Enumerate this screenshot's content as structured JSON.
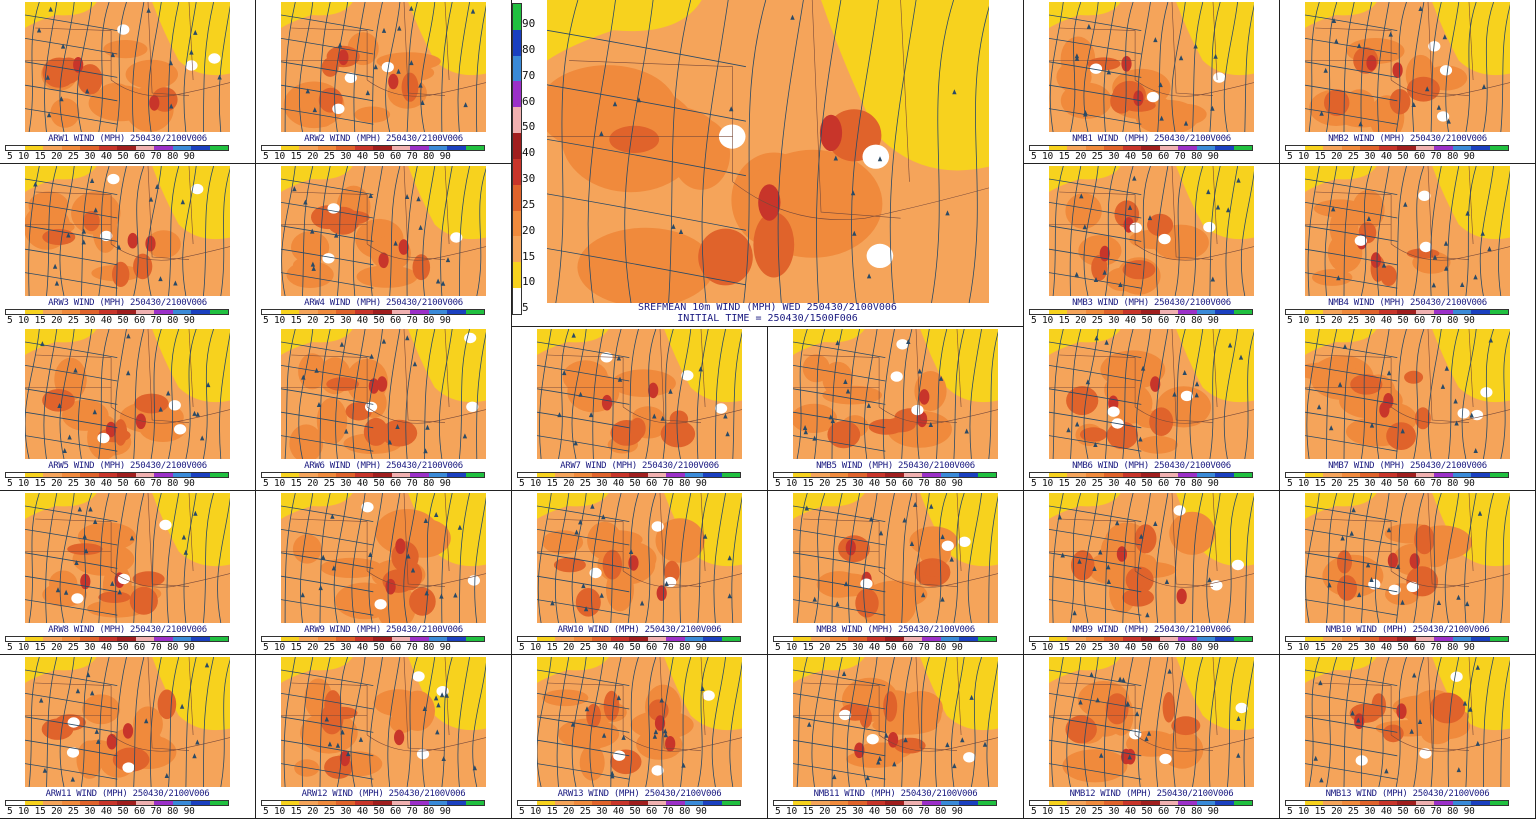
{
  "big": {
    "title": "SREFMEAN 10m WIND (MPH) WED 250430/2100V006",
    "subtitle": "INITIAL TIME = 250430/1500F006",
    "scale": [
      "90",
      "80",
      "70",
      "60",
      "50",
      "40",
      "30",
      "25",
      "20",
      "15",
      "10",
      "5"
    ]
  },
  "scale_ticks": "5 10 15 20 25 30 40 50 60 70 80 90",
  "colors": {
    "light_orange": "#f5a45a",
    "orange": "#f08a3c",
    "dark_orange": "#e0632b",
    "red": "#c8352a",
    "yellow": "#f7d21e",
    "streamline": "#2a4a66",
    "state_line": "#7a4a3a"
  },
  "colorbar": [
    "#ffffff",
    "#f7d21e",
    "#f5a45a",
    "#f08a3c",
    "#e0632b",
    "#c8352a",
    "#a01e1e",
    "#f0b0b0",
    "#9b30c8",
    "#3a8ad8",
    "#1a40c0",
    "#20c040"
  ],
  "panels": [
    {
      "label": "ARW1 WIND (MPH) 250430/2100V006"
    },
    {
      "label": "ARW2 WIND (MPH) 250430/2100V006"
    },
    {
      "label": "NMB1 WIND (MPH) 250430/2100V006"
    },
    {
      "label": "NMB2 WIND (MPH) 250430/2100V006"
    },
    {
      "label": "ARW3 WIND (MPH) 250430/2100V006"
    },
    {
      "label": "ARW4 WIND (MPH) 250430/2100V006"
    },
    {
      "label": "NMB3 WIND (MPH) 250430/2100V006"
    },
    {
      "label": "NMB4 WIND (MPH) 250430/2100V006"
    },
    {
      "label": "ARW5 WIND (MPH) 250430/2100V006"
    },
    {
      "label": "ARW6 WIND (MPH) 250430/2100V006"
    },
    {
      "label": "ARW7 WIND (MPH) 250430/2100V006"
    },
    {
      "label": "NMB5 WIND (MPH) 250430/2100V006"
    },
    {
      "label": "NMB6 WIND (MPH) 250430/2100V006"
    },
    {
      "label": "NMB7 WIND (MPH) 250430/2100V006"
    },
    {
      "label": "ARW8 WIND (MPH) 250430/2100V006"
    },
    {
      "label": "ARW9 WIND (MPH) 250430/2100V006"
    },
    {
      "label": "ARW10 WIND (MPH) 250430/2100V006"
    },
    {
      "label": "NMB8 WIND (MPH) 250430/2100V006"
    },
    {
      "label": "NMB9 WIND (MPH) 250430/2100V006"
    },
    {
      "label": "NMB10 WIND (MPH) 250430/2100V006"
    },
    {
      "label": "ARW11 WIND (MPH) 250430/2100V006"
    },
    {
      "label": "ARW12 WIND (MPH) 250430/2100V006"
    },
    {
      "label": "ARW13 WIND (MPH) 250430/2100V006"
    },
    {
      "label": "NMB11 WIND (MPH) 250430/2100V006"
    },
    {
      "label": "NMB12 WIND (MPH) 250430/2100V006"
    },
    {
      "label": "NMB13 WIND (MPH) 250430/2100V006"
    }
  ]
}
